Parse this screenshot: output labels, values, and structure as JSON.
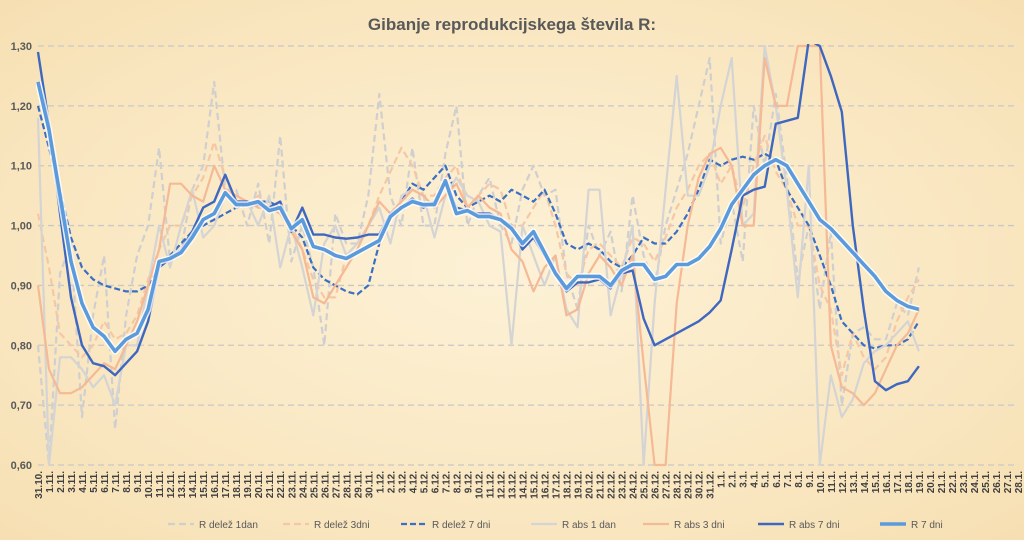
{
  "chart_data": {
    "type": "line",
    "title": "Gibanje reprodukcijskega števila R:",
    "ylim": [
      0.6,
      1.3
    ],
    "yticks": [
      "0,60",
      "0,70",
      "0,80",
      "0,90",
      "1,00",
      "1,10",
      "1,20",
      "1,30"
    ],
    "ytick_values": [
      0.6,
      0.7,
      0.8,
      0.9,
      1.0,
      1.1,
      1.2,
      1.3
    ],
    "grid": "horizontal dashed",
    "legend_position": "bottom",
    "categories": [
      "31.10.",
      "1.11.",
      "2.11.",
      "3.11.",
      "4.11.",
      "5.11.",
      "6.11.",
      "7.11.",
      "8.11.",
      "9.11.",
      "10.11.",
      "11.11.",
      "12.11.",
      "13.11.",
      "14.11.",
      "15.11.",
      "16.11.",
      "17.11.",
      "18.11.",
      "19.11.",
      "20.11.",
      "21.11.",
      "22.11.",
      "23.11.",
      "24.11.",
      "25.11.",
      "26.11.",
      "27.11.",
      "28.11.",
      "29.11.",
      "30.11.",
      "1.12.",
      "2.12.",
      "3.12.",
      "4.12.",
      "5.12.",
      "6.12.",
      "7.12.",
      "8.12.",
      "9.12.",
      "10.12.",
      "11.12.",
      "12.12.",
      "13.12.",
      "14.12.",
      "15.12.",
      "16.12.",
      "17.12.",
      "18.12.",
      "19.12.",
      "20.12.",
      "21.12.",
      "22.12.",
      "23.12.",
      "24.12.",
      "25.12.",
      "26.12.",
      "27.12.",
      "28.12.",
      "29.12.",
      "30.12.",
      "31.12.",
      "1.1.",
      "2.1.",
      "3.1.",
      "4.1.",
      "5.1.",
      "6.1.",
      "7.1.",
      "8.1.",
      "9.1.",
      "10.1.",
      "11.1.",
      "12.1.",
      "13.1.",
      "14.1.",
      "15.1.",
      "16.1.",
      "17.1.",
      "18.1.",
      "19.1.",
      "20.1.",
      "21.1.",
      "22.1.",
      "23.1.",
      "24.1.",
      "25.1.",
      "26.1.",
      "27.1.",
      "28.1."
    ],
    "series": [
      {
        "name": "R delež 1dan",
        "color": "#cfcfcf",
        "dash": "7 4",
        "width": 2.2,
        "values": [
          0.8,
          0.6,
          0.92,
          0.97,
          0.68,
          0.85,
          0.95,
          0.66,
          0.85,
          0.95,
          1.0,
          1.13,
          0.94,
          0.96,
          1.06,
          1.1,
          1.24,
          1.06,
          1.06,
          1.0,
          1.07,
          0.97,
          1.15,
          0.94,
          1.0,
          0.93,
          0.8,
          1.02,
          0.97,
          0.97,
          1.05,
          1.22,
          1.05,
          1.0,
          1.13,
          1.0,
          1.0,
          1.12,
          1.2,
          1.0,
          1.05,
          1.08,
          1.0,
          0.97,
          1.06,
          1.1,
          1.05,
          1.06,
          0.92,
          0.86,
          1.0,
          0.95,
          0.99,
          0.89,
          1.05,
          0.95,
          0.9,
          1.0,
          1.06,
          1.12,
          1.2,
          1.28,
          0.97,
          1.04,
          0.94,
          1.2,
          1.1,
          1.22,
          1.08,
          0.91,
          1.0,
          0.86,
          0.99,
          0.7,
          0.82,
          0.83,
          0.81,
          0.81,
          0.87,
          0.85,
          0.93,
          null,
          null,
          null,
          null,
          null,
          null,
          null,
          null,
          null
        ]
      },
      {
        "name": "R delež 3dni",
        "color": "#f6c7a4",
        "dash": "7 4",
        "width": 2.2,
        "values": [
          1.02,
          0.93,
          0.82,
          0.8,
          0.78,
          0.8,
          0.84,
          0.81,
          0.82,
          0.85,
          0.91,
          0.96,
          1.0,
          1.0,
          1.05,
          1.08,
          1.14,
          1.08,
          1.04,
          1.03,
          1.05,
          1.03,
          1.02,
          1.0,
          0.96,
          0.91,
          0.88,
          0.88,
          0.95,
          0.97,
          1.0,
          1.05,
          1.09,
          1.13,
          1.1,
          1.05,
          1.05,
          1.08,
          1.1,
          1.03,
          1.05,
          1.07,
          1.06,
          1.0,
          1.0,
          1.03,
          1.06,
          1.0,
          0.92,
          0.9,
          0.96,
          0.97,
          0.95,
          0.93,
          0.98,
          0.97,
          0.94,
          0.98,
          1.03,
          1.06,
          1.1,
          1.12,
          1.07,
          1.1,
          1.03,
          1.1,
          1.15,
          1.09,
          1.06,
          1.0,
          1.0,
          0.9,
          0.86,
          0.75,
          0.82,
          0.78,
          0.76,
          0.78,
          0.84,
          0.88,
          0.91,
          null,
          null,
          null,
          null,
          null,
          null,
          null,
          null,
          null
        ]
      },
      {
        "name": "R delež 7 dni",
        "color": "#3a6fc4",
        "dash": "6 3",
        "width": 2.2,
        "values": [
          1.2,
          1.13,
          1.06,
          0.98,
          0.93,
          0.91,
          0.9,
          0.895,
          0.89,
          0.89,
          0.9,
          0.93,
          0.95,
          0.97,
          0.99,
          1.0,
          1.01,
          1.02,
          1.03,
          1.035,
          1.04,
          1.04,
          1.03,
          1.0,
          0.98,
          0.93,
          0.91,
          0.9,
          0.89,
          0.885,
          0.9,
          0.97,
          1.02,
          1.04,
          1.07,
          1.06,
          1.08,
          1.1,
          1.05,
          1.03,
          1.04,
          1.05,
          1.04,
          1.06,
          1.05,
          1.04,
          1.06,
          1.02,
          0.97,
          0.96,
          0.97,
          0.96,
          0.94,
          0.93,
          0.95,
          0.98,
          0.97,
          0.97,
          0.99,
          1.02,
          1.06,
          1.11,
          1.1,
          1.11,
          1.115,
          1.11,
          1.12,
          1.11,
          1.06,
          1.03,
          1.0,
          0.95,
          0.9,
          0.84,
          0.82,
          0.8,
          0.795,
          0.8,
          0.8,
          0.81,
          0.84,
          null,
          null,
          null,
          null,
          null,
          null,
          null,
          null,
          null
        ]
      },
      {
        "name": "R abs 1 dan",
        "color": "#d4d4d4",
        "dash": "",
        "width": 2.2,
        "values": [
          1.18,
          0.6,
          0.78,
          0.78,
          0.76,
          0.73,
          0.75,
          0.7,
          0.8,
          0.8,
          0.9,
          1.0,
          0.93,
          1.0,
          1.06,
          0.98,
          1.0,
          1.05,
          1.03,
          1.04,
          1.0,
          1.05,
          0.93,
          1.0,
          0.93,
          0.85,
          0.97,
          1.0,
          0.95,
          0.97,
          1.0,
          1.03,
          0.97,
          1.05,
          1.06,
          1.05,
          0.98,
          1.05,
          1.08,
          1.05,
          1.04,
          1.0,
          0.99,
          0.8,
          1.0,
          0.95,
          0.9,
          0.95,
          0.86,
          0.83,
          1.06,
          1.06,
          0.85,
          0.92,
          1.0,
          0.6,
          0.87,
          1.06,
          1.25,
          1.05,
          1.05,
          1.1,
          1.2,
          1.28,
          1.0,
          1.02,
          1.3,
          1.2,
          1.06,
          0.88,
          1.1,
          0.6,
          0.75,
          0.68,
          0.71,
          0.77,
          0.79,
          0.8,
          0.82,
          0.84,
          0.79,
          null,
          null,
          null,
          null,
          null,
          null,
          null,
          null,
          null
        ]
      },
      {
        "name": "R abs 3 dni",
        "color": "#f5b995",
        "dash": "",
        "width": 2.2,
        "values": [
          0.9,
          0.76,
          0.72,
          0.72,
          0.73,
          0.75,
          0.77,
          0.76,
          0.8,
          0.84,
          0.9,
          0.96,
          1.07,
          1.07,
          1.05,
          1.04,
          1.1,
          1.06,
          1.05,
          1.04,
          1.03,
          1.03,
          1.02,
          0.99,
          0.96,
          0.88,
          0.87,
          0.9,
          0.93,
          0.96,
          1.0,
          1.04,
          1.02,
          1.04,
          1.06,
          1.05,
          1.03,
          1.05,
          1.07,
          1.03,
          1.05,
          1.03,
          1.02,
          0.96,
          0.94,
          0.89,
          0.93,
          0.95,
          0.85,
          0.86,
          0.92,
          0.95,
          0.93,
          0.9,
          0.95,
          0.77,
          0.6,
          0.6,
          0.87,
          1.0,
          1.08,
          1.12,
          1.13,
          1.1,
          1.0,
          1.0,
          1.28,
          1.2,
          1.2,
          1.3,
          1.3,
          1.3,
          0.8,
          0.73,
          0.72,
          0.7,
          0.72,
          0.76,
          0.8,
          0.82,
          0.86,
          null,
          null,
          null,
          null,
          null,
          null,
          null,
          null,
          null
        ]
      },
      {
        "name": "R abs 7 dni",
        "color": "#3e68c0",
        "dash": "",
        "width": 2.4,
        "values": [
          1.29,
          1.17,
          1.02,
          0.88,
          0.8,
          0.77,
          0.765,
          0.75,
          0.77,
          0.79,
          0.84,
          0.93,
          0.945,
          0.96,
          0.99,
          1.03,
          1.04,
          1.085,
          1.04,
          1.04,
          1.035,
          1.03,
          1.04,
          0.99,
          1.03,
          0.985,
          0.985,
          0.98,
          0.978,
          0.98,
          0.985,
          0.985,
          1.02,
          1.03,
          1.045,
          1.03,
          1.04,
          1.075,
          1.03,
          1.025,
          1.02,
          1.02,
          1.01,
          1.0,
          0.96,
          0.98,
          0.95,
          0.92,
          0.89,
          0.905,
          0.905,
          0.91,
          0.895,
          0.92,
          0.925,
          0.845,
          0.8,
          0.81,
          0.82,
          0.83,
          0.84,
          0.855,
          0.875,
          0.96,
          1.05,
          1.06,
          1.065,
          1.17,
          1.175,
          1.18,
          1.31,
          1.3,
          1.25,
          1.19,
          1.0,
          0.86,
          0.74,
          0.725,
          0.735,
          0.74,
          0.765,
          null,
          null,
          null,
          null,
          null,
          null,
          null,
          null,
          null
        ]
      },
      {
        "name": "R 7 dni",
        "color": "#5b9bdc",
        "dash": "",
        "width": 3.6,
        "values": [
          1.24,
          1.16,
          1.05,
          0.94,
          0.87,
          0.83,
          0.815,
          0.79,
          0.81,
          0.82,
          0.86,
          0.94,
          0.945,
          0.955,
          0.98,
          1.01,
          1.02,
          1.055,
          1.035,
          1.035,
          1.04,
          1.025,
          1.03,
          0.995,
          1.01,
          0.965,
          0.96,
          0.95,
          0.945,
          0.955,
          0.965,
          0.975,
          1.015,
          1.03,
          1.04,
          1.035,
          1.035,
          1.075,
          1.02,
          1.025,
          1.015,
          1.015,
          1.01,
          0.995,
          0.97,
          0.99,
          0.955,
          0.92,
          0.895,
          0.915,
          0.915,
          0.915,
          0.9,
          0.925,
          0.935,
          0.935,
          0.91,
          0.915,
          0.935,
          0.935,
          0.945,
          0.965,
          0.995,
          1.035,
          1.06,
          1.085,
          1.1,
          1.11,
          1.1,
          1.07,
          1.04,
          1.01,
          0.995,
          0.975,
          0.955,
          0.935,
          0.915,
          0.89,
          0.875,
          0.865,
          0.86,
          null,
          null,
          null,
          null,
          null,
          null,
          null,
          null,
          null
        ]
      }
    ]
  }
}
